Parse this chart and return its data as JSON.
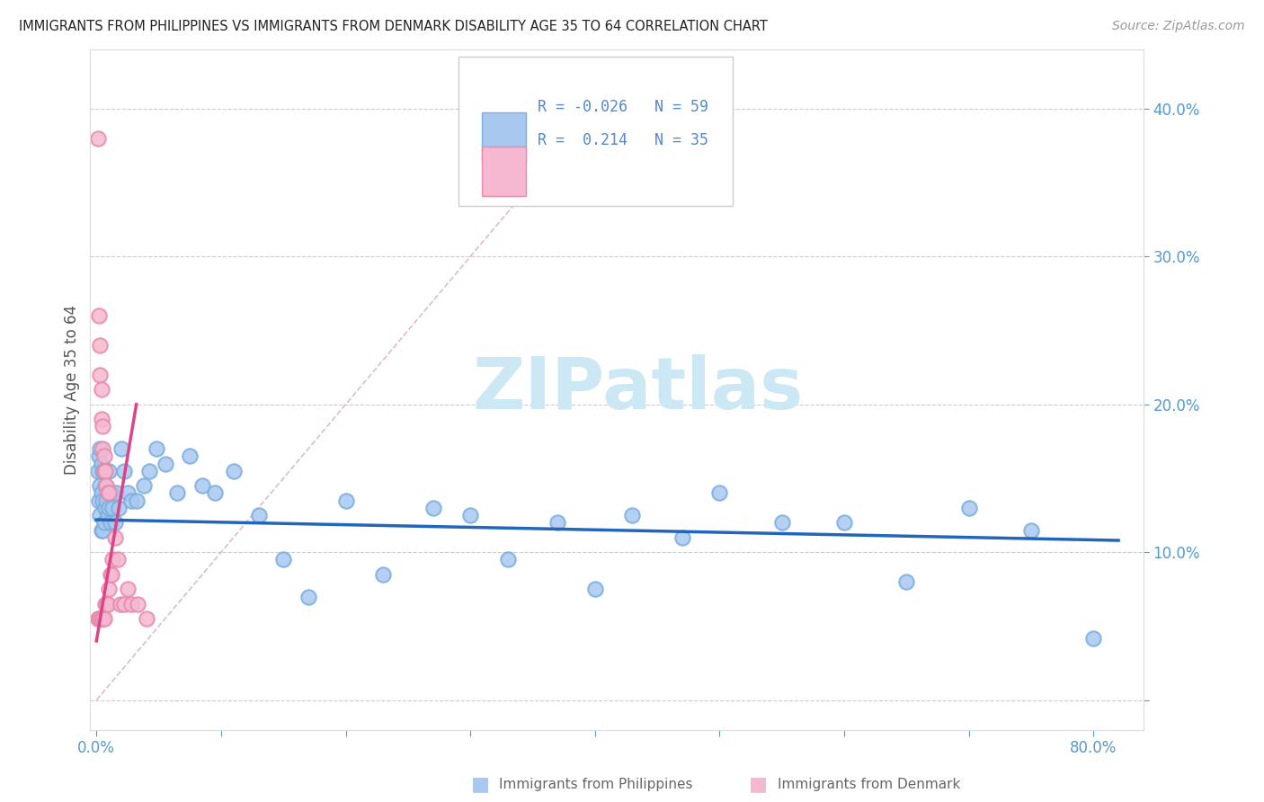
{
  "title": "IMMIGRANTS FROM PHILIPPINES VS IMMIGRANTS FROM DENMARK DISABILITY AGE 35 TO 64 CORRELATION CHART",
  "source": "Source: ZipAtlas.com",
  "ylabel": "Disability Age 35 to 64",
  "xlim": [
    -0.005,
    0.84
  ],
  "ylim": [
    -0.02,
    0.44
  ],
  "x_ticks": [
    0.0,
    0.1,
    0.2,
    0.3,
    0.4,
    0.5,
    0.6,
    0.7,
    0.8
  ],
  "x_tick_labels": [
    "0.0%",
    "",
    "",
    "",
    "",
    "",
    "",
    "",
    "80.0%"
  ],
  "y_ticks": [
    0.0,
    0.1,
    0.2,
    0.3,
    0.4
  ],
  "y_tick_labels_right": [
    "",
    "10.0%",
    "20.0%",
    "30.0%",
    "40.0%"
  ],
  "philippines_color": "#a8c8f0",
  "philippines_edge_color": "#7aaedd",
  "denmark_color": "#f5b8d0",
  "denmark_edge_color": "#e88aaa",
  "philippines_line_color": "#2266bb",
  "denmark_line_color": "#dd4488",
  "ref_line_color": "#ddbbcc",
  "background_color": "#ffffff",
  "watermark": "ZIPatlas",
  "watermark_color": "#cce8f5",
  "legend_label1": "Immigrants from Philippines",
  "legend_label2": "Immigrants from Denmark",
  "philippines_x": [
    0.001,
    0.002,
    0.002,
    0.003,
    0.003,
    0.003,
    0.004,
    0.004,
    0.004,
    0.005,
    0.005,
    0.005,
    0.006,
    0.006,
    0.007,
    0.007,
    0.008,
    0.009,
    0.01,
    0.01,
    0.011,
    0.012,
    0.013,
    0.015,
    0.016,
    0.018,
    0.02,
    0.022,
    0.025,
    0.028,
    0.032,
    0.038,
    0.042,
    0.048,
    0.055,
    0.065,
    0.075,
    0.085,
    0.095,
    0.11,
    0.13,
    0.15,
    0.17,
    0.2,
    0.23,
    0.27,
    0.3,
    0.33,
    0.37,
    0.4,
    0.43,
    0.47,
    0.5,
    0.55,
    0.6,
    0.65,
    0.7,
    0.75,
    0.8
  ],
  "philippines_y": [
    0.155,
    0.165,
    0.135,
    0.17,
    0.145,
    0.125,
    0.16,
    0.14,
    0.115,
    0.155,
    0.135,
    0.115,
    0.155,
    0.12,
    0.145,
    0.13,
    0.135,
    0.125,
    0.155,
    0.13,
    0.12,
    0.14,
    0.13,
    0.12,
    0.14,
    0.13,
    0.17,
    0.155,
    0.14,
    0.135,
    0.135,
    0.145,
    0.155,
    0.17,
    0.16,
    0.14,
    0.165,
    0.145,
    0.14,
    0.155,
    0.125,
    0.095,
    0.07,
    0.135,
    0.085,
    0.13,
    0.125,
    0.095,
    0.12,
    0.075,
    0.125,
    0.11,
    0.14,
    0.12,
    0.12,
    0.08,
    0.13,
    0.115,
    0.042
  ],
  "denmark_x": [
    0.001,
    0.001,
    0.002,
    0.002,
    0.003,
    0.003,
    0.003,
    0.004,
    0.004,
    0.004,
    0.005,
    0.005,
    0.005,
    0.006,
    0.006,
    0.006,
    0.007,
    0.007,
    0.008,
    0.008,
    0.009,
    0.009,
    0.01,
    0.01,
    0.011,
    0.012,
    0.013,
    0.015,
    0.017,
    0.019,
    0.022,
    0.025,
    0.028,
    0.033,
    0.04
  ],
  "denmark_y": [
    0.38,
    0.055,
    0.26,
    0.055,
    0.24,
    0.22,
    0.055,
    0.21,
    0.19,
    0.055,
    0.185,
    0.17,
    0.055,
    0.165,
    0.155,
    0.055,
    0.155,
    0.065,
    0.145,
    0.065,
    0.14,
    0.065,
    0.14,
    0.075,
    0.085,
    0.085,
    0.095,
    0.11,
    0.095,
    0.065,
    0.065,
    0.075,
    0.065,
    0.065,
    0.055
  ]
}
